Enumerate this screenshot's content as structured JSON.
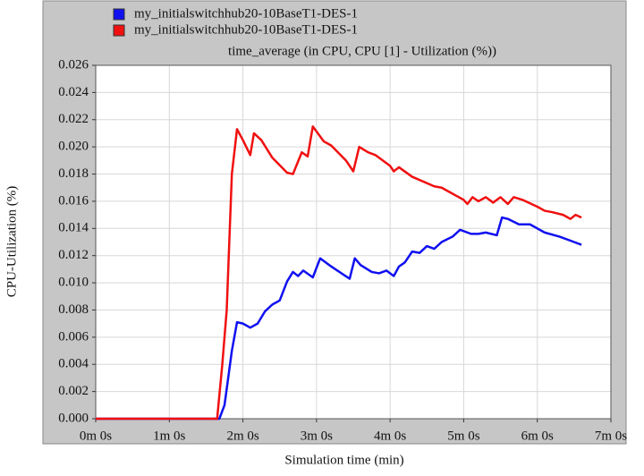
{
  "chart_data": {
    "type": "line",
    "title": "time_average (in CPU, CPU [1] - Utilization (%))",
    "x_label": "Simulation time (min)",
    "y_label": "CPU-Utilization (%)",
    "xlim": [
      0,
      7
    ],
    "xticks": [
      {
        "value": 0,
        "label": "0m 0s"
      },
      {
        "value": 1,
        "label": "1m 0s"
      },
      {
        "value": 2,
        "label": "2m 0s"
      },
      {
        "value": 3,
        "label": "3m 0s"
      },
      {
        "value": 4,
        "label": "4m 0s"
      },
      {
        "value": 5,
        "label": "5m 0s"
      },
      {
        "value": 6,
        "label": "6m 0s"
      },
      {
        "value": 7,
        "label": "7m 0s"
      }
    ],
    "ylim": [
      0,
      0.026
    ],
    "yticks": [
      {
        "value": 0,
        "label": "0.000"
      },
      {
        "value": 0.002,
        "label": "0.002"
      },
      {
        "value": 0.004,
        "label": "0.004"
      },
      {
        "value": 0.006,
        "label": "0.006"
      },
      {
        "value": 0.008,
        "label": "0.008"
      },
      {
        "value": 0.01,
        "label": "0.010"
      },
      {
        "value": 0.012,
        "label": "0.012"
      },
      {
        "value": 0.014,
        "label": "0.014"
      },
      {
        "value": 0.016,
        "label": "0.016"
      },
      {
        "value": 0.018,
        "label": "0.018"
      },
      {
        "value": 0.02,
        "label": "0.020"
      },
      {
        "value": 0.022,
        "label": "0.022"
      },
      {
        "value": 0.024,
        "label": "0.024"
      },
      {
        "value": 0.026,
        "label": "0.026"
      }
    ],
    "grid": true,
    "series": [
      {
        "name": "my_initialswitchhub20-10BaseT1-DES-1",
        "color": "#1010f0",
        "x": [
          0,
          1.68,
          1.75,
          1.85,
          1.92,
          2.0,
          2.1,
          2.2,
          2.3,
          2.4,
          2.5,
          2.6,
          2.68,
          2.75,
          2.82,
          2.95,
          3.05,
          3.2,
          3.45,
          3.52,
          3.6,
          3.75,
          3.85,
          3.95,
          4.05,
          4.12,
          4.2,
          4.3,
          4.4,
          4.5,
          4.6,
          4.7,
          4.85,
          4.95,
          5.1,
          5.2,
          5.3,
          5.45,
          5.52,
          5.6,
          5.75,
          5.9,
          6.1,
          6.3,
          6.5,
          6.6
        ],
        "values": [
          0,
          0,
          0.001,
          0.005,
          0.0071,
          0.007,
          0.0067,
          0.007,
          0.0079,
          0.0084,
          0.0087,
          0.0101,
          0.0108,
          0.0105,
          0.0109,
          0.0104,
          0.0118,
          0.0112,
          0.0103,
          0.0118,
          0.0113,
          0.0108,
          0.0107,
          0.0109,
          0.0105,
          0.0112,
          0.0115,
          0.0123,
          0.0122,
          0.0127,
          0.0125,
          0.013,
          0.0134,
          0.0139,
          0.0136,
          0.0136,
          0.0137,
          0.0135,
          0.0148,
          0.0147,
          0.0143,
          0.0143,
          0.0137,
          0.0134,
          0.013,
          0.0128
        ]
      },
      {
        "name": "my_initialswitchhub20-10BaseT1-DES-1",
        "color": "#f01010",
        "x": [
          0,
          1.65,
          1.72,
          1.78,
          1.85,
          1.92,
          2.0,
          2.1,
          2.15,
          2.25,
          2.4,
          2.6,
          2.68,
          2.8,
          2.88,
          2.95,
          3.1,
          3.2,
          3.4,
          3.5,
          3.58,
          3.7,
          3.8,
          4.0,
          4.05,
          4.12,
          4.3,
          4.6,
          4.7,
          5.0,
          5.05,
          5.12,
          5.2,
          5.3,
          5.4,
          5.5,
          5.6,
          5.68,
          5.8,
          6.0,
          6.1,
          6.2,
          6.35,
          6.45,
          6.52,
          6.6
        ],
        "values": [
          0,
          0,
          0.004,
          0.008,
          0.018,
          0.0213,
          0.0205,
          0.0194,
          0.021,
          0.0205,
          0.0192,
          0.0181,
          0.018,
          0.0196,
          0.0193,
          0.0215,
          0.0204,
          0.0201,
          0.019,
          0.0182,
          0.02,
          0.0196,
          0.0194,
          0.0186,
          0.0182,
          0.0185,
          0.0178,
          0.0171,
          0.017,
          0.0161,
          0.0158,
          0.0163,
          0.016,
          0.0163,
          0.0159,
          0.0163,
          0.0158,
          0.0163,
          0.0161,
          0.0156,
          0.0153,
          0.0152,
          0.015,
          0.0147,
          0.015,
          0.0148
        ]
      }
    ]
  }
}
